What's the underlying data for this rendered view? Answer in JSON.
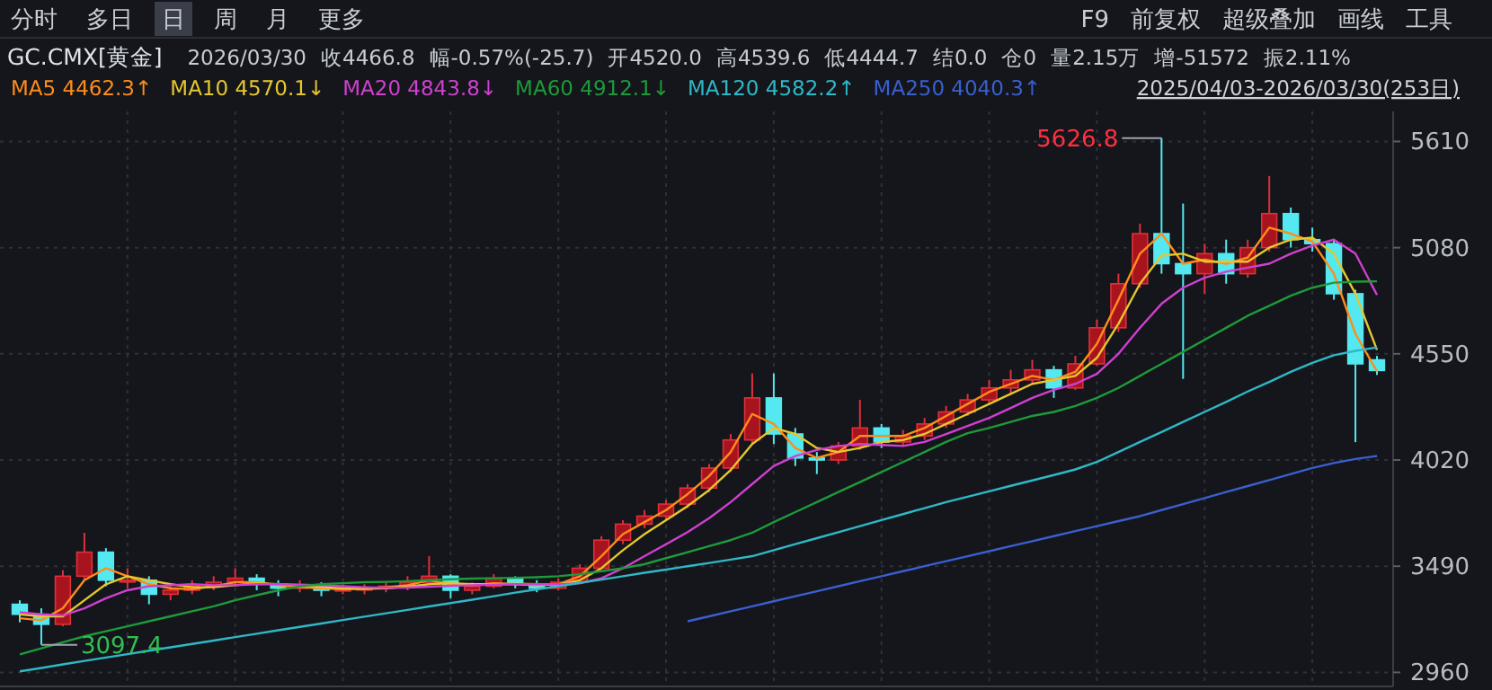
{
  "chart_data": {
    "type": "candlestick",
    "title": "GC.CMX[黄金]",
    "categories": [
      null,
      null,
      null,
      null,
      null,
      null,
      null,
      null,
      null,
      null,
      null,
      null,
      null,
      null,
      null,
      null,
      null,
      null,
      null,
      null,
      null,
      null,
      null,
      null,
      null,
      null,
      null,
      null,
      null,
      null,
      null,
      null,
      null,
      null,
      null,
      null,
      null,
      null,
      null,
      null,
      null,
      null,
      null,
      null,
      null,
      null,
      null,
      null,
      null,
      null,
      null,
      null,
      null,
      null,
      null,
      null,
      null,
      null,
      null,
      null,
      null,
      null,
      null,
      null
    ],
    "ohlc": [
      [
        3300,
        3320,
        3210,
        3250
      ],
      [
        3250,
        3280,
        3097.4,
        3200
      ],
      [
        3200,
        3470,
        3190,
        3440
      ],
      [
        3440,
        3657,
        3420,
        3560
      ],
      [
        3560,
        3580,
        3390,
        3420
      ],
      [
        3420,
        3480,
        3380,
        3420
      ],
      [
        3420,
        3440,
        3300,
        3350
      ],
      [
        3350,
        3400,
        3320,
        3370
      ],
      [
        3370,
        3420,
        3350,
        3390
      ],
      [
        3390,
        3440,
        3370,
        3410
      ],
      [
        3410,
        3480,
        3390,
        3430
      ],
      [
        3430,
        3450,
        3370,
        3400
      ],
      [
        3400,
        3420,
        3340,
        3380
      ],
      [
        3380,
        3420,
        3360,
        3390
      ],
      [
        3390,
        3410,
        3340,
        3370
      ],
      [
        3370,
        3400,
        3350,
        3375
      ],
      [
        3375,
        3400,
        3350,
        3380
      ],
      [
        3380,
        3410,
        3360,
        3390
      ],
      [
        3390,
        3440,
        3370,
        3410
      ],
      [
        3410,
        3540,
        3400,
        3440
      ],
      [
        3440,
        3450,
        3330,
        3370
      ],
      [
        3370,
        3410,
        3350,
        3390
      ],
      [
        3390,
        3450,
        3380,
        3430
      ],
      [
        3430,
        3440,
        3380,
        3400
      ],
      [
        3400,
        3420,
        3360,
        3380
      ],
      [
        3380,
        3430,
        3370,
        3410
      ],
      [
        3410,
        3500,
        3400,
        3480
      ],
      [
        3480,
        3640,
        3470,
        3620
      ],
      [
        3620,
        3720,
        3600,
        3700
      ],
      [
        3700,
        3770,
        3680,
        3740
      ],
      [
        3740,
        3820,
        3720,
        3800
      ],
      [
        3800,
        3900,
        3780,
        3880
      ],
      [
        3880,
        4000,
        3860,
        3980
      ],
      [
        3980,
        4150,
        3960,
        4120
      ],
      [
        4120,
        4452,
        4100,
        4330
      ],
      [
        4330,
        4452,
        4100,
        4150
      ],
      [
        4150,
        4180,
        3990,
        4030
      ],
      [
        4030,
        4060,
        3950,
        4020
      ],
      [
        4020,
        4110,
        4000,
        4090
      ],
      [
        4090,
        4320,
        4070,
        4180
      ],
      [
        4180,
        4200,
        4080,
        4110
      ],
      [
        4110,
        4170,
        4090,
        4140
      ],
      [
        4140,
        4230,
        4120,
        4200
      ],
      [
        4200,
        4290,
        4180,
        4260
      ],
      [
        4260,
        4350,
        4240,
        4320
      ],
      [
        4320,
        4420,
        4300,
        4380
      ],
      [
        4380,
        4470,
        4350,
        4420
      ],
      [
        4420,
        4520,
        4400,
        4470
      ],
      [
        4470,
        4490,
        4330,
        4380
      ],
      [
        4380,
        4540,
        4370,
        4500
      ],
      [
        4500,
        4720,
        4490,
        4680
      ],
      [
        4680,
        4950,
        4660,
        4900
      ],
      [
        4900,
        5200,
        4880,
        5150
      ],
      [
        5150,
        5626.8,
        4950,
        5000
      ],
      [
        5000,
        5300,
        4425,
        4950
      ],
      [
        4950,
        5100,
        4850,
        5050
      ],
      [
        5050,
        5120,
        4900,
        4950
      ],
      [
        4950,
        5120,
        4930,
        5080
      ],
      [
        5080,
        5438,
        5060,
        5250
      ],
      [
        5250,
        5280,
        5080,
        5120
      ],
      [
        5120,
        5180,
        5060,
        5100
      ],
      [
        5100,
        5120,
        4820,
        4850
      ],
      [
        4850,
        4870,
        4109,
        4500
      ],
      [
        4520,
        4539.6,
        4444.7,
        4466.8
      ]
    ],
    "series": [
      {
        "name": "MA5 4462.3↑",
        "type": "line",
        "color": "#ff8c1a",
        "values": [
          3230,
          3220,
          3280,
          3420,
          3480,
          3440,
          3400,
          3380,
          3375,
          3390,
          3410,
          3410,
          3395,
          3385,
          3380,
          3375,
          3378,
          3385,
          3395,
          3420,
          3400,
          3395,
          3405,
          3400,
          3395,
          3400,
          3440,
          3540,
          3650,
          3710,
          3770,
          3850,
          3940,
          4060,
          4250,
          4200,
          4080,
          4030,
          4060,
          4140,
          4140,
          4140,
          4180,
          4240,
          4300,
          4360,
          4400,
          4440,
          4420,
          4460,
          4600,
          4820,
          5050,
          5150,
          5000,
          5020,
          5000,
          5030,
          5180,
          5150,
          5110,
          4950,
          4650,
          4462.3
        ]
      },
      {
        "name": "MA10 4570.1↓",
        "type": "line",
        "color": "#e6c72e",
        "values": [
          3250,
          3240,
          3240,
          3320,
          3400,
          3440,
          3420,
          3400,
          3385,
          3385,
          3395,
          3405,
          3400,
          3395,
          3385,
          3380,
          3378,
          3380,
          3388,
          3400,
          3405,
          3400,
          3400,
          3402,
          3400,
          3398,
          3420,
          3480,
          3570,
          3650,
          3720,
          3790,
          3870,
          3970,
          4100,
          4180,
          4150,
          4080,
          4060,
          4080,
          4110,
          4120,
          4150,
          4200,
          4250,
          4300,
          4350,
          4400,
          4420,
          4440,
          4530,
          4700,
          4900,
          5040,
          5050,
          5010,
          5010,
          5010,
          5080,
          5120,
          5130,
          5050,
          4850,
          4570.1
        ]
      },
      {
        "name": "MA20 4843.8↓",
        "type": "line",
        "color": "#d040d0",
        "values": [
          3260,
          3250,
          3245,
          3280,
          3330,
          3370,
          3390,
          3395,
          3400,
          3395,
          3395,
          3400,
          3400,
          3398,
          3395,
          3390,
          3385,
          3382,
          3383,
          3388,
          3392,
          3395,
          3398,
          3400,
          3400,
          3400,
          3405,
          3430,
          3480,
          3540,
          3600,
          3660,
          3730,
          3810,
          3900,
          3990,
          4040,
          4070,
          4090,
          4100,
          4095,
          4090,
          4110,
          4150,
          4190,
          4230,
          4280,
          4330,
          4370,
          4400,
          4450,
          4550,
          4680,
          4800,
          4880,
          4930,
          4960,
          4980,
          5000,
          5050,
          5090,
          5120,
          5050,
          4843.8
        ]
      },
      {
        "name": "MA60 4912.1↓",
        "type": "line",
        "color": "#1f9a3a",
        "values": [
          3050,
          3080,
          3110,
          3140,
          3165,
          3190,
          3215,
          3240,
          3265,
          3290,
          3320,
          3345,
          3370,
          3390,
          3400,
          3405,
          3410,
          3412,
          3415,
          3420,
          3425,
          3428,
          3430,
          3432,
          3435,
          3440,
          3450,
          3465,
          3480,
          3500,
          3530,
          3560,
          3590,
          3620,
          3657,
          3710,
          3760,
          3810,
          3860,
          3910,
          3960,
          4010,
          4060,
          4110,
          4154,
          4180,
          4210,
          4240,
          4260,
          4290,
          4330,
          4380,
          4440,
          4500,
          4560,
          4620,
          4680,
          4740,
          4790,
          4840,
          4880,
          4905,
          4910,
          4912.1
        ]
      },
      {
        "name": "MA120 4582.2↑",
        "type": "line",
        "color": "#2fb8c8",
        "values": [
          2965,
          2982,
          3000,
          3017,
          3034,
          3051,
          3068,
          3085,
          3102,
          3119,
          3136,
          3153,
          3170,
          3187,
          3204,
          3221,
          3238,
          3255,
          3272,
          3289,
          3306,
          3323,
          3340,
          3358,
          3374,
          3390,
          3407,
          3423,
          3440,
          3457,
          3473,
          3490,
          3506,
          3523,
          3540,
          3570,
          3600,
          3630,
          3660,
          3690,
          3720,
          3750,
          3780,
          3810,
          3837,
          3864,
          3891,
          3918,
          3945,
          3973,
          4010,
          4060,
          4110,
          4160,
          4210,
          4260,
          4310,
          4362,
          4410,
          4460,
          4505,
          4543,
          4565,
          4582.2
        ]
      },
      {
        "name": "MA250 4040.3↑",
        "type": "line",
        "color": "#3a5fd0",
        "values": [
          null,
          null,
          null,
          null,
          null,
          null,
          null,
          null,
          null,
          null,
          null,
          null,
          null,
          null,
          null,
          null,
          null,
          null,
          null,
          null,
          null,
          null,
          null,
          null,
          null,
          null,
          null,
          null,
          null,
          null,
          null,
          3215,
          3240,
          3265,
          3290,
          3315,
          3340,
          3365,
          3390,
          3415,
          3440,
          3465,
          3490,
          3515,
          3540,
          3565,
          3590,
          3615,
          3640,
          3665,
          3690,
          3715,
          3740,
          3770,
          3800,
          3830,
          3860,
          3890,
          3920,
          3950,
          3980,
          4005,
          4025,
          4040.3
        ]
      }
    ],
    "ylim": [
      2890,
      5760
    ],
    "yticks": [
      2960,
      3490,
      4020,
      4550,
      5080,
      5610
    ],
    "grid": true,
    "legend": "top left",
    "annotations": [
      "分时",
      "多日",
      "日",
      "周",
      "月",
      "更多",
      "F9",
      "前复权",
      "超级叠加",
      "画线",
      "工具",
      "2026/03/30",
      "收4466.8",
      "幅-0.57%(-25.7)",
      "开4520.0",
      "高4539.6",
      "低4444.7",
      "结0.0",
      "仓0",
      "量2.15万",
      "增-51572",
      "振2.11%",
      "2025/04/03-2026/03/30(253日)",
      "5626.8",
      "3097.4"
    ]
  }
}
